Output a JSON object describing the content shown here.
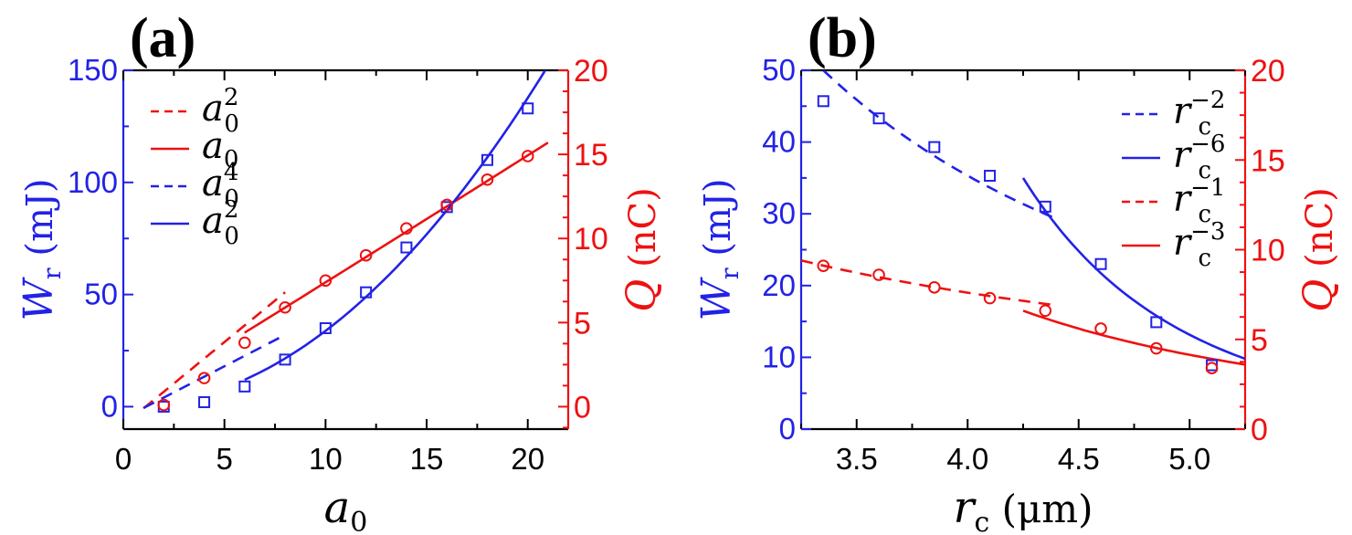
{
  "chart_data": [
    {
      "type": "scatter",
      "panel_label": "(a)",
      "colors": {
        "left_axis": "#2222e6",
        "right_axis": "#ee1111"
      },
      "x_axis": {
        "label": "a",
        "label_sub": "0",
        "range": [
          0,
          22
        ],
        "ticks": [
          0,
          5,
          10,
          15,
          20
        ]
      },
      "y_left": {
        "label": "W",
        "label_sub": "r",
        "label_unit": "(mJ)",
        "range": [
          -10,
          150
        ],
        "ticks": [
          0,
          50,
          100,
          150
        ]
      },
      "y_right": {
        "label": "Q",
        "label_unit": "(nC)",
        "range": [
          -1.3333,
          20
        ],
        "ticks": [
          0,
          5,
          10,
          15,
          20
        ]
      },
      "series": [
        {
          "marker": "square",
          "axis": "left",
          "color": "#2222e6",
          "x": [
            2,
            4,
            6,
            8,
            10,
            12,
            14,
            16,
            18,
            20
          ],
          "y": [
            0,
            2,
            9,
            21,
            35,
            51,
            71,
            89,
            110,
            133
          ]
        },
        {
          "marker": "circle",
          "axis": "right",
          "color": "#ee1111",
          "x": [
            2,
            4,
            6,
            8,
            10,
            12,
            14,
            16,
            18,
            20
          ],
          "y": [
            0.1,
            1.7,
            3.8,
            5.9,
            7.5,
            9.0,
            10.6,
            12.0,
            13.5,
            14.9
          ]
        }
      ],
      "fits": [
        {
          "style": "dashed",
          "axis": "right",
          "color": "#ee1111",
          "x": [
            1,
            8
          ],
          "y": [
            -0.1,
            6.8
          ]
        },
        {
          "style": "solid",
          "axis": "right",
          "color": "#ee1111",
          "x": [
            6,
            21
          ],
          "y": [
            4.4,
            15.7
          ]
        },
        {
          "style": "dashed",
          "axis": "left",
          "color": "#2222e6",
          "x": [
            1,
            8
          ],
          "y": [
            -0.6,
            32
          ]
        },
        {
          "style": "solid",
          "axis": "left",
          "color": "#2222e6",
          "x": [
            6,
            21
          ],
          "y": [
            12,
            152
          ]
        }
      ],
      "legend": {
        "placement": "top-left",
        "entries": [
          {
            "style": "dashed",
            "color": "#ee1111",
            "base": "a",
            "sub": "0",
            "sup": "2"
          },
          {
            "style": "solid",
            "color": "#ee1111",
            "base": "a",
            "sub": "0",
            "sup": ""
          },
          {
            "style": "dashed",
            "color": "#2222e6",
            "base": "a",
            "sub": "0",
            "sup": "4"
          },
          {
            "style": "solid",
            "color": "#2222e6",
            "base": "a",
            "sub": "0",
            "sup": "2"
          }
        ]
      }
    },
    {
      "type": "scatter",
      "panel_label": "(b)",
      "colors": {
        "left_axis": "#2222e6",
        "right_axis": "#ee1111"
      },
      "x_axis": {
        "label": "r",
        "label_sub": "c",
        "label_unit": "(μm)",
        "range": [
          3.25,
          5.25
        ],
        "ticks": [
          3.5,
          4.0,
          4.5,
          5.0
        ]
      },
      "y_left": {
        "label": "W",
        "label_sub": "r",
        "label_unit": "(mJ)",
        "range": [
          0,
          50
        ],
        "ticks": [
          0,
          10,
          20,
          30,
          40,
          50
        ]
      },
      "y_right": {
        "label": "Q",
        "label_unit": "(nC)",
        "range": [
          0,
          20
        ],
        "ticks": [
          0,
          5,
          10,
          15,
          20
        ]
      },
      "series": [
        {
          "marker": "square",
          "axis": "left",
          "color": "#2222e6",
          "x": [
            3.35,
            3.6,
            3.85,
            4.1,
            4.35,
            4.6,
            4.85,
            5.1
          ],
          "y": [
            45.7,
            43.3,
            39.3,
            35.3,
            31.0,
            23.0,
            14.9,
            8.9
          ]
        },
        {
          "marker": "circle",
          "axis": "right",
          "color": "#ee1111",
          "x": [
            3.35,
            3.6,
            3.85,
            4.1,
            4.35,
            4.6,
            4.85,
            5.1
          ],
          "y": [
            9.1,
            8.6,
            7.9,
            7.3,
            6.6,
            5.6,
            4.5,
            3.4
          ]
        }
      ],
      "fits": [
        {
          "style": "dashed",
          "axis": "left",
          "color": "#2222e6",
          "x": [
            3.35,
            4.4
          ],
          "y": [
            50,
            29.3
          ]
        },
        {
          "style": "solid",
          "axis": "left",
          "color": "#2222e6",
          "x": [
            4.25,
            5.25
          ],
          "y": [
            35,
            9.8
          ]
        },
        {
          "style": "dashed",
          "axis": "right",
          "color": "#ee1111",
          "x": [
            3.25,
            4.4
          ],
          "y": [
            9.4,
            6.9
          ]
        },
        {
          "style": "solid",
          "axis": "right",
          "color": "#ee1111",
          "x": [
            4.25,
            5.25
          ],
          "y": [
            6.6,
            3.6
          ]
        }
      ],
      "legend": {
        "placement": "top-right",
        "entries": [
          {
            "style": "dashed",
            "color": "#2222e6",
            "base": "r",
            "sub": "c",
            "sup": "−2"
          },
          {
            "style": "solid",
            "color": "#2222e6",
            "base": "r",
            "sub": "c",
            "sup": "−6"
          },
          {
            "style": "dashed",
            "color": "#ee1111",
            "base": "r",
            "sub": "c",
            "sup": "−1"
          },
          {
            "style": "solid",
            "color": "#ee1111",
            "base": "r",
            "sub": "c",
            "sup": "−3"
          }
        ]
      }
    }
  ]
}
